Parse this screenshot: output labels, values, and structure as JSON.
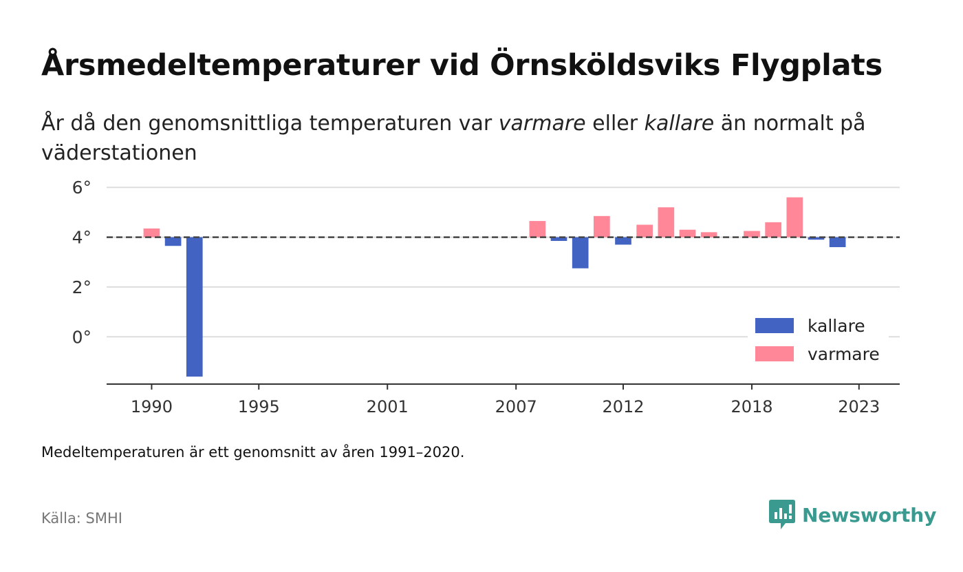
{
  "title": "Årsmedeltemperaturer vid Örnsköldsviks Flygplats",
  "subtitle": {
    "part1": "År då den genomsnittliga temperaturen var ",
    "warm_word": "varmare",
    "part2": " eller ",
    "cold_word": "kallare",
    "part3": " än normalt på väderstationen"
  },
  "footnote": "Medeltemperaturen är ett genomsnitt av åren 1991–2020.",
  "source": "Källa: SMHI",
  "brand": "Newsworthy",
  "colors": {
    "cold": "#4263c1",
    "warm": "#ff8798",
    "brand": "#3a9a90",
    "grid": "#dddddd",
    "axis": "#333333"
  },
  "chart_data": {
    "type": "bar",
    "baseline": 4.0,
    "ylim": [
      -1.9,
      6.2
    ],
    "yticks": [
      0,
      2,
      4,
      6
    ],
    "ytick_labels": [
      "0°",
      "2°",
      "4°",
      "6°"
    ],
    "xlim": [
      1987.9,
      2024.9
    ],
    "xticks": [
      1990,
      1995,
      2001,
      2007,
      2012,
      2018,
      2023
    ],
    "xtick_labels": [
      "1990",
      "1995",
      "2001",
      "2007",
      "2012",
      "2018",
      "2023"
    ],
    "legend": {
      "position": "bottom-right",
      "entries": [
        "kallare",
        "varmare"
      ]
    },
    "series": [
      {
        "name": "kallare",
        "color": "#4263c1",
        "points": [
          {
            "x": 1991,
            "y": 3.65
          },
          {
            "x": 1992,
            "y": -1.6
          },
          {
            "x": 2009,
            "y": 3.85
          },
          {
            "x": 2010,
            "y": 2.75
          },
          {
            "x": 2012,
            "y": 3.7
          },
          {
            "x": 2021,
            "y": 3.9
          },
          {
            "x": 2022,
            "y": 3.6
          }
        ]
      },
      {
        "name": "varmare",
        "color": "#ff8798",
        "points": [
          {
            "x": 1990,
            "y": 4.35
          },
          {
            "x": 2008,
            "y": 4.65
          },
          {
            "x": 2011,
            "y": 4.85
          },
          {
            "x": 2013,
            "y": 4.5
          },
          {
            "x": 2014,
            "y": 5.2
          },
          {
            "x": 2015,
            "y": 4.3
          },
          {
            "x": 2016,
            "y": 4.2
          },
          {
            "x": 2018,
            "y": 4.25
          },
          {
            "x": 2019,
            "y": 4.6
          },
          {
            "x": 2020,
            "y": 5.6
          }
        ]
      }
    ]
  }
}
